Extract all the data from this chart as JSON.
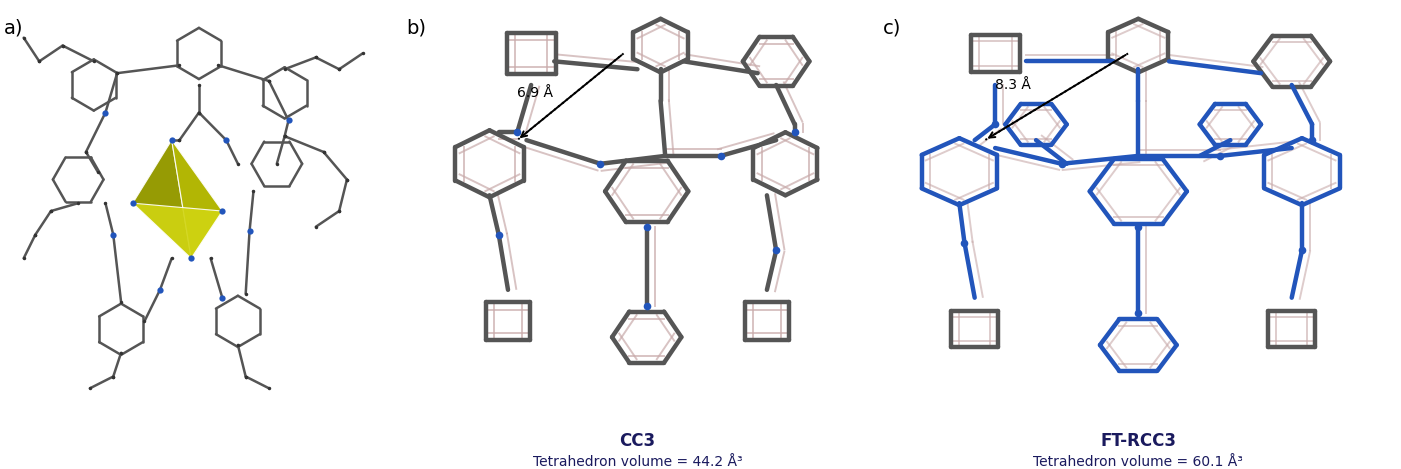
{
  "panel_labels": [
    "a)",
    "b)",
    "c)"
  ],
  "cc3_label": "CC3",
  "cc3_sublabel": "Tetrahedron volume = 44.2 Å³",
  "ftrcc3_label": "FT-RCC3",
  "ftrcc3_sublabel": "Tetrahedron volume = 60.1 Å³",
  "dist_b": "6.9 Å",
  "dist_c": "8.3 Å",
  "bg_color": "#ffffff",
  "bond_color_gray": "#555555",
  "bond_color_blue": "#2255bb",
  "atom_blue": "#2255bb",
  "atom_dark": "#333333",
  "tetra_colors": [
    "#c8cc10",
    "#909500",
    "#b0b400",
    "#d0d410"
  ],
  "tetra_white_edge": "#ffffff",
  "stroke_pink": "#c8a8a8",
  "label_fontsize": 12,
  "sublabel_fontsize": 10,
  "panel_label_fontsize": 14
}
